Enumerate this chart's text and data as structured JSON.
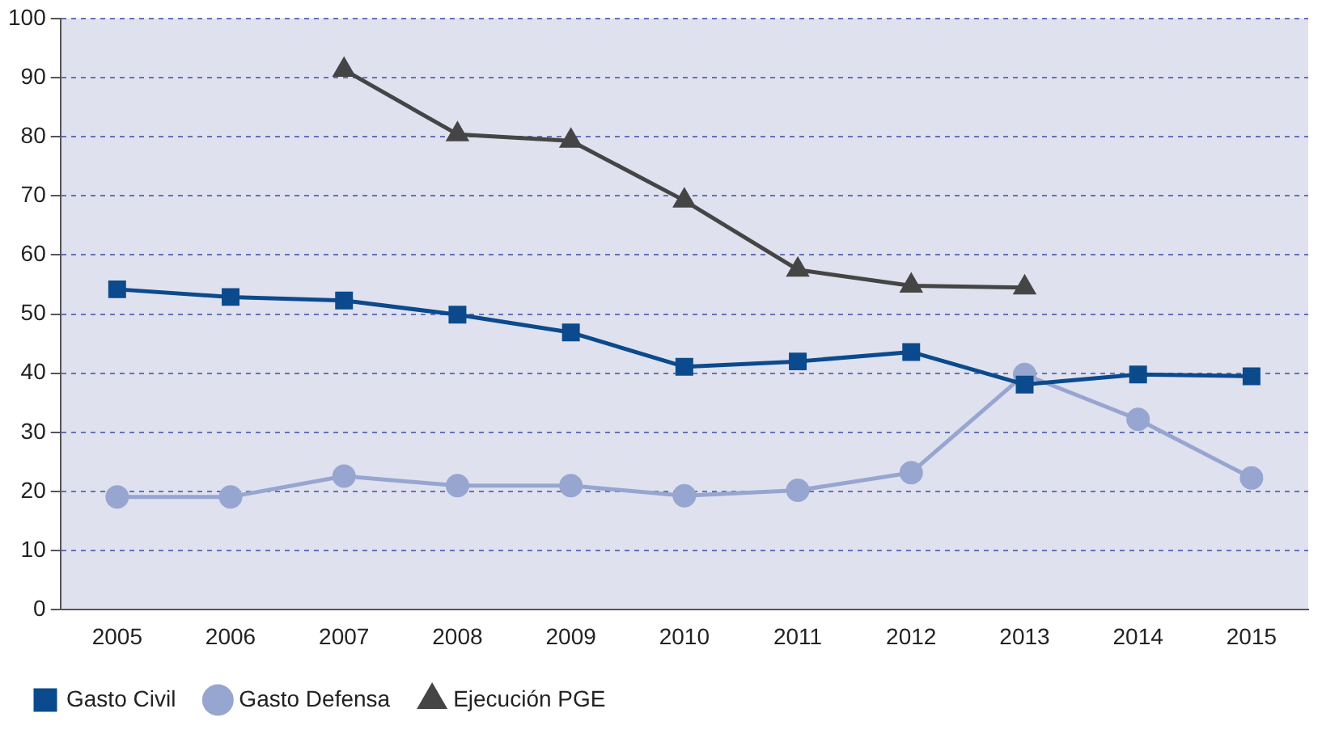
{
  "chart_data": {
    "type": "line",
    "categories": [
      "2005",
      "2006",
      "2007",
      "2008",
      "2009",
      "2010",
      "2011",
      "2012",
      "2013",
      "2014",
      "2015"
    ],
    "series": [
      {
        "name": "Gasto Civil",
        "color": "#0b4a8c",
        "marker": "square",
        "values": [
          54.2,
          52.9,
          52.3,
          49.9,
          46.9,
          41.1,
          42.0,
          43.6,
          38.1,
          39.8,
          39.5
        ]
      },
      {
        "name": "Gasto Defensa",
        "color": "#97a6d0",
        "marker": "circle",
        "values": [
          19.1,
          19.1,
          22.6,
          21.0,
          21.0,
          19.3,
          20.2,
          23.2,
          39.8,
          32.2,
          22.3
        ]
      },
      {
        "name": "Ejecución PGE",
        "color": "#454545",
        "marker": "triangle",
        "values": [
          null,
          null,
          91.3,
          80.4,
          79.3,
          69.2,
          57.5,
          54.8,
          54.5,
          null,
          null
        ]
      }
    ],
    "ylim": [
      0,
      100
    ],
    "yticks": [
      0,
      10,
      20,
      30,
      40,
      50,
      60,
      70,
      80,
      90,
      100
    ],
    "grid": "y",
    "legend": "bottom left",
    "line_style": "solid"
  }
}
